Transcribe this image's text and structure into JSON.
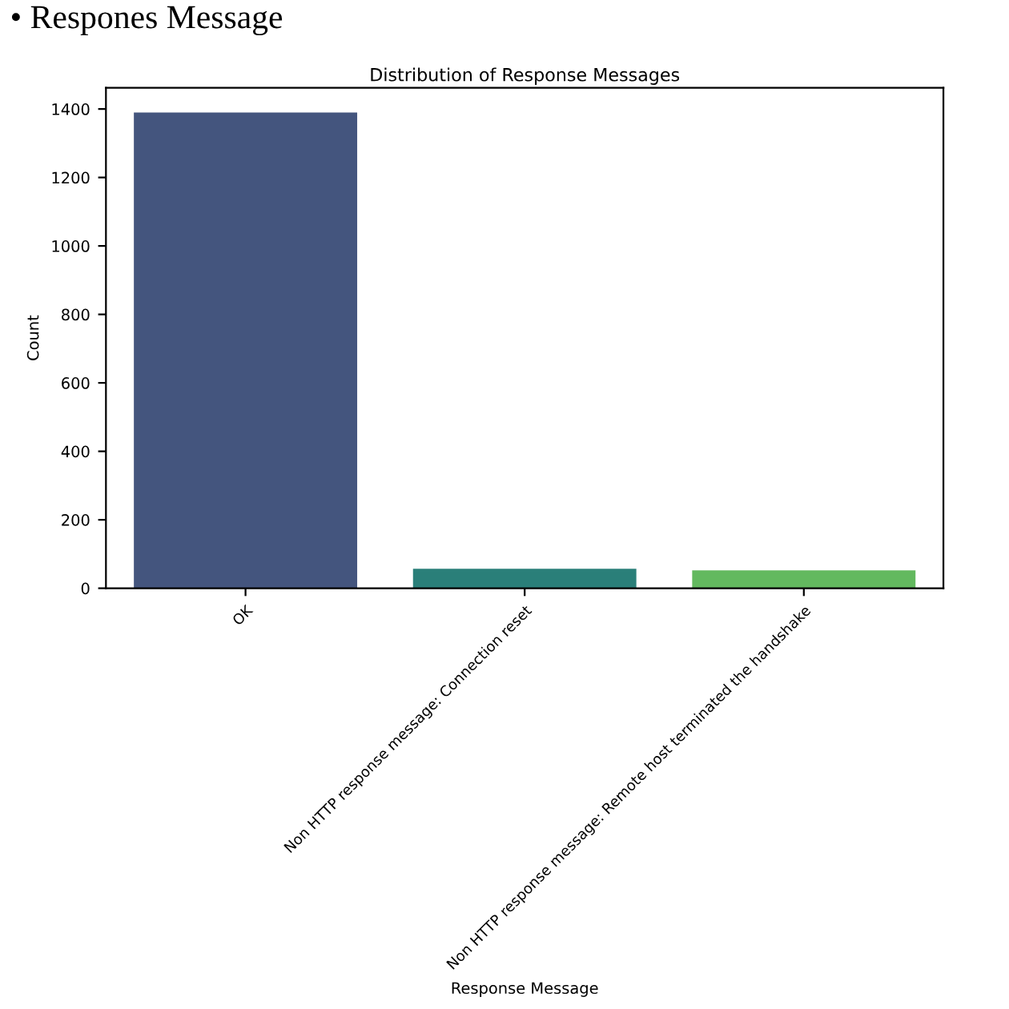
{
  "chart_data": {
    "type": "bar",
    "title": "Distribution of Response Messages",
    "xlabel": "Response Message",
    "ylabel": "Count",
    "annotations": [
      "• Respones Message"
    ],
    "categories": [
      "OK",
      "Non HTTP response message: Connection reset",
      "Non HTTP response message: Remote host terminated the handshake"
    ],
    "values": [
      1390,
      57,
      52
    ],
    "colors": [
      "#44557e",
      "#2a7f79",
      "#63b95f"
    ],
    "ylim": [
      0,
      1462
    ],
    "yticks": [
      0,
      200,
      400,
      600,
      800,
      1000,
      1200,
      1400
    ],
    "grid": false
  }
}
